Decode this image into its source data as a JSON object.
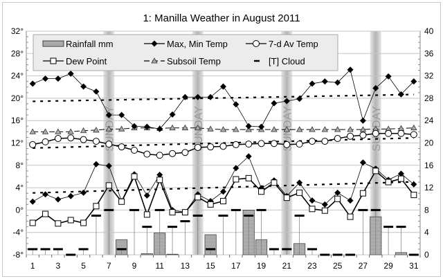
{
  "chart_data": {
    "type": "line",
    "title": "1: Manilla Weather in August 2011",
    "x": [
      1,
      2,
      3,
      4,
      5,
      6,
      7,
      8,
      9,
      10,
      11,
      12,
      13,
      14,
      15,
      16,
      17,
      18,
      19,
      20,
      21,
      22,
      23,
      24,
      25,
      26,
      27,
      28,
      29,
      30,
      31
    ],
    "x_tick_labels": [
      "1",
      "3",
      "5",
      "7",
      "9",
      "11",
      "13",
      "15",
      "17",
      "19",
      "21",
      "23",
      "25",
      "27",
      "29",
      "31"
    ],
    "y_left": {
      "range": [
        -8,
        32
      ],
      "tick_labels": [
        "32°",
        "28°",
        "24°",
        "20°",
        "16°",
        "12°",
        "8°",
        "4°",
        "0°",
        "-4°",
        "-8°"
      ]
    },
    "y_right": {
      "range": [
        0,
        40
      ],
      "tick_labels": [
        "40",
        "36",
        "32",
        "28",
        "24",
        "20",
        "16",
        "12",
        "8",
        "4",
        "0"
      ]
    },
    "grid": true,
    "legend_position": "top",
    "sunday_days": [
      7,
      14,
      21,
      28
    ],
    "sunday_label": "SUNDAY",
    "series": [
      {
        "name": "Rainfall mm",
        "type": "bar",
        "axis": "right",
        "values": [
          0,
          0,
          0,
          0,
          0,
          0,
          0,
          2.7,
          0,
          0.2,
          3.9,
          0.1,
          0,
          0,
          3.6,
          0,
          0,
          8.0,
          2.7,
          0,
          0,
          2.0,
          0,
          0,
          0,
          0,
          0,
          6.8,
          0,
          0.4,
          0
        ]
      },
      {
        "name": "Max, Min Temp",
        "type": "line",
        "axis": "left",
        "marker": "diamond",
        "max": [
          22.6,
          23.5,
          23.5,
          24.4,
          22.1,
          21.2,
          17.0,
          17.0,
          15.0,
          14.9,
          14.5,
          17.1,
          20.2,
          20.2,
          20.2,
          22.1,
          18.9,
          15.0,
          14.9,
          19.1,
          19.5,
          19.9,
          22.6,
          23.0,
          22.8,
          25.1,
          16.0,
          21.8,
          23.9,
          20.7,
          23.0
        ],
        "min": [
          1.5,
          2.8,
          1.9,
          2.5,
          3.1,
          8.2,
          7.9,
          1.6,
          6.4,
          2.6,
          6.3,
          0.0,
          -0.4,
          2.8,
          1.6,
          3.3,
          7.5,
          9.6,
          3.9,
          5.3,
          2.5,
          4.9,
          1.7,
          1.0,
          3.1,
          1.7,
          8.5,
          7.4,
          5.4,
          6.5,
          4.6
        ]
      },
      {
        "name": "7-d Av Temp",
        "type": "line",
        "axis": "left",
        "marker": "circle",
        "values": [
          11.7,
          12.2,
          12.8,
          12.9,
          12.6,
          12.3,
          11.8,
          11.3,
          10.7,
          10.0,
          9.8,
          10.1,
          10.3,
          11.2,
          11.3,
          11.4,
          11.7,
          11.8,
          11.9,
          11.9,
          11.7,
          11.8,
          12.3,
          12.3,
          12.8,
          13.2,
          13.4,
          13.7,
          13.7,
          13.7,
          13.5
        ]
      },
      {
        "name": "Dew Point",
        "type": "line",
        "axis": "left",
        "marker": "square",
        "values": [
          -2.3,
          -0.7,
          -2.4,
          -1.8,
          -2.3,
          0.7,
          4.4,
          1.5,
          6.0,
          -0.8,
          5.4,
          -0.4,
          -0.4,
          2.3,
          1.0,
          1.6,
          5.5,
          5.7,
          3.3,
          4.9,
          2.2,
          3.1,
          0.2,
          -0.1,
          2.0,
          -1.2,
          3.0,
          7.0,
          5.0,
          5.6,
          2.7
        ]
      },
      {
        "name": "Subsoil Temp",
        "type": "line",
        "axis": "left",
        "marker": "triangle",
        "values": [
          14.0,
          14.0,
          14.0,
          14.0,
          14.2,
          14.3,
          14.5,
          14.5,
          14.7,
          14.7,
          14.6,
          14.7,
          14.7,
          14.7,
          14.5,
          14.4,
          14.4,
          14.4,
          14.4,
          14.4,
          14.4,
          14.4,
          14.4,
          14.4,
          14.4,
          14.4,
          14.4,
          14.5,
          14.5,
          14.6,
          14.7
        ]
      },
      {
        "name": "[T] Cloud",
        "type": "dash",
        "axis": "right",
        "values": [
          1,
          1,
          1,
          0,
          1,
          7,
          8,
          1,
          8,
          5,
          8,
          5,
          6,
          7,
          1,
          7,
          8,
          7,
          8,
          1,
          1,
          7,
          1,
          0,
          0,
          0,
          8,
          8,
          5,
          5,
          0
        ]
      }
    ]
  }
}
